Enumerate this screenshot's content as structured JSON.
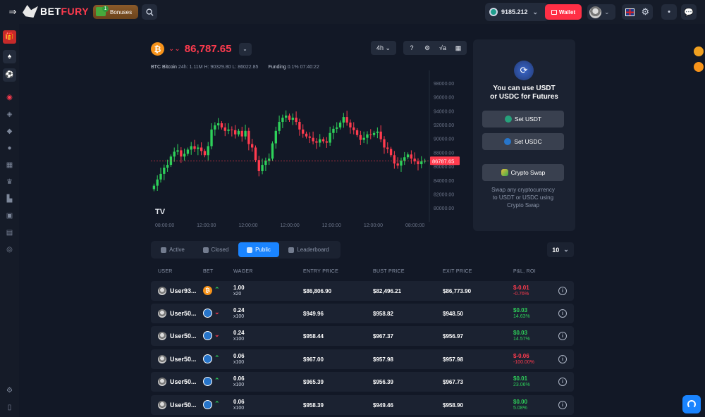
{
  "header": {
    "logo_prefix": "BET",
    "logo_suffix": "FURY",
    "bonuses_label": "Bonuses",
    "bonuses_count": "1",
    "balance": "9185.212",
    "wallet_label": "Wallet"
  },
  "ticker": {
    "symbol_icon": "₿",
    "price": "86,787.65",
    "direction_icon": "double-chevron-down"
  },
  "chart_tools": {
    "interval": "4h"
  },
  "chart_info": {
    "name": "BTC Bitcoin",
    "stats": "24h: 1.11M H: 90329.80 L: 86022.85",
    "funding_label": "Funding",
    "funding_value": "0.1% 07:40:22"
  },
  "chart_data": {
    "type": "candlestick",
    "y_ticks": [
      "98000.00",
      "96000.00",
      "94000.00",
      "92000.00",
      "90000.00",
      "88000.00",
      "86000.00",
      "84000.00",
      "82000.00",
      "80000.00"
    ],
    "ylim": [
      79000,
      99000
    ],
    "x_ticks": [
      "08:00:00",
      "12:00:00",
      "12:00:00",
      "12:00:00",
      "12:00:00",
      "12:00:00",
      "08:00:00"
    ],
    "current_price_label": "86787.65",
    "current_price": 86787.65,
    "colors": {
      "up": "#2ed15a",
      "down": "#ff3b4e"
    },
    "trend": [
      83200,
      84100,
      84900,
      85800,
      86200,
      87400,
      88100,
      88300,
      87400,
      87800,
      88400,
      88900,
      88500,
      88700,
      88200,
      87600,
      88900,
      91300,
      91900,
      92200,
      91600,
      91100,
      91300,
      91200,
      90600,
      91100,
      90300,
      91100,
      89200,
      88700,
      86900,
      85300,
      86200,
      86800,
      87100,
      89300,
      91100,
      92400,
      93000,
      93300,
      92700,
      93000,
      92400,
      91300,
      90700,
      90300,
      90100,
      89600,
      89400,
      89900,
      89600,
      89400,
      90800,
      91400,
      91600,
      92300,
      93100,
      92300,
      91600,
      91200,
      90500,
      89800,
      90100,
      90600,
      90500,
      90800,
      91000,
      89900,
      88700,
      88500,
      87600,
      86400,
      86100,
      86800,
      87300,
      87700,
      87100,
      86700,
      86300,
      86700,
      86780
    ]
  },
  "futures_panel": {
    "title_line1": "You can use USDT",
    "title_line2": "or USDC for Futures",
    "set_usdt": "Set USDT",
    "set_usdc": "Set USDC",
    "crypto_swap": "Crypto Swap",
    "sub_line1": "Swap any cryptocurrency",
    "sub_line2": "to USDT or USDC using",
    "sub_line3": "Crypto Swap"
  },
  "tabs": [
    "Active",
    "Closed",
    "Public",
    "Leaderboard"
  ],
  "per_page": "10",
  "table": {
    "headers": [
      "USER",
      "BET",
      "WAGER",
      "ENTRY PRICE",
      "BUST PRICE",
      "EXIT PRICE",
      "P&L, ROI"
    ],
    "rows": [
      {
        "user": "User93...",
        "coin": "btc",
        "dir": "up",
        "wager": "1.00",
        "mult": "x20",
        "entry": "$86,806.90",
        "bust": "$82,496.21",
        "exit": "$86,773.90",
        "pnl": "$-0.01",
        "roi": "-0.76%",
        "sign": "neg"
      },
      {
        "user": "User50...",
        "coin": "usdc",
        "dir": "down",
        "wager": "0.24",
        "mult": "x100",
        "entry": "$949.96",
        "bust": "$958.82",
        "exit": "$948.50",
        "pnl": "$0.03",
        "roi": "14.63%",
        "sign": "pos"
      },
      {
        "user": "User50...",
        "coin": "usdc",
        "dir": "down",
        "wager": "0.24",
        "mult": "x100",
        "entry": "$958.44",
        "bust": "$967.37",
        "exit": "$956.97",
        "pnl": "$0.03",
        "roi": "14.57%",
        "sign": "pos"
      },
      {
        "user": "User50...",
        "coin": "usdc",
        "dir": "up",
        "wager": "0.06",
        "mult": "x100",
        "entry": "$967.00",
        "bust": "$957.98",
        "exit": "$957.98",
        "pnl": "$-0.06",
        "roi": "-100.00%",
        "sign": "neg"
      },
      {
        "user": "User50...",
        "coin": "usdc",
        "dir": "up",
        "wager": "0.06",
        "mult": "x100",
        "entry": "$965.39",
        "bust": "$956.39",
        "exit": "$967.73",
        "pnl": "$0.01",
        "roi": "23.06%",
        "sign": "pos"
      },
      {
        "user": "User50...",
        "coin": "usdc",
        "dir": "up",
        "wager": "0.06",
        "mult": "x100",
        "entry": "$958.39",
        "bust": "$949.46",
        "exit": "$958.90",
        "pnl": "$0.00",
        "roi": "5.08%",
        "sign": "pos"
      }
    ]
  }
}
